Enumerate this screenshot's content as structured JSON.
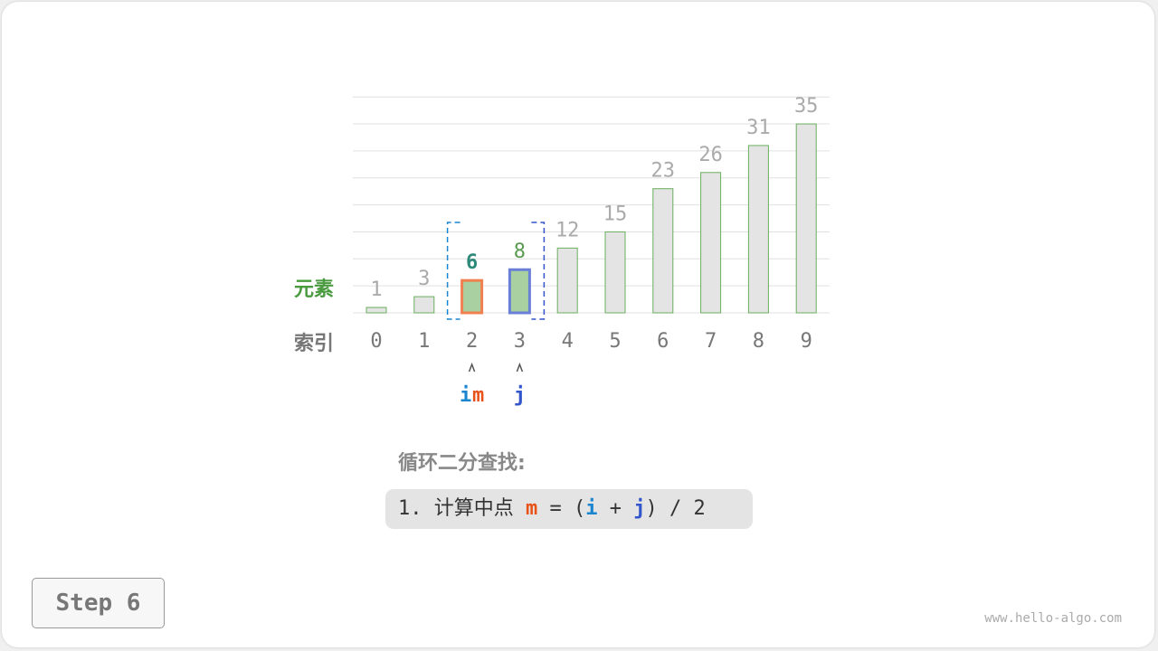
{
  "labels": {
    "element": "元素",
    "index": "索引"
  },
  "bars": [
    1,
    3,
    6,
    8,
    12,
    15,
    23,
    26,
    31,
    35
  ],
  "indices": [
    "0",
    "1",
    "2",
    "3",
    "4",
    "5",
    "6",
    "7",
    "8",
    "9"
  ],
  "highlight": {
    "m_index": 2,
    "j_index": 3,
    "i_index": 2
  },
  "pointers": {
    "i": "i",
    "m": "m",
    "j": "j",
    "arrow": "^"
  },
  "title": "循环二分查找:",
  "step_line": {
    "prefix": "1. 计算中点 ",
    "m": "m",
    "eq": " = (",
    "i": "i",
    "plus": " + ",
    "j": "j",
    "suffix": ") / 2"
  },
  "step_button": "Step 6",
  "watermark": "www.hello-algo.com",
  "colors": {
    "i": "#1a86d0",
    "m": "#e8531a",
    "j": "#3355cc",
    "bar_fill": "#e4e4e4",
    "bar_active_fill": "#a8d0a0",
    "bar_stroke": "#6aae5c",
    "m_border": "#f08050",
    "j_border": "#6a80d8",
    "element_label": "#4a9a40",
    "m_value": "#2e8a78",
    "j_value": "#5a9a50"
  }
}
